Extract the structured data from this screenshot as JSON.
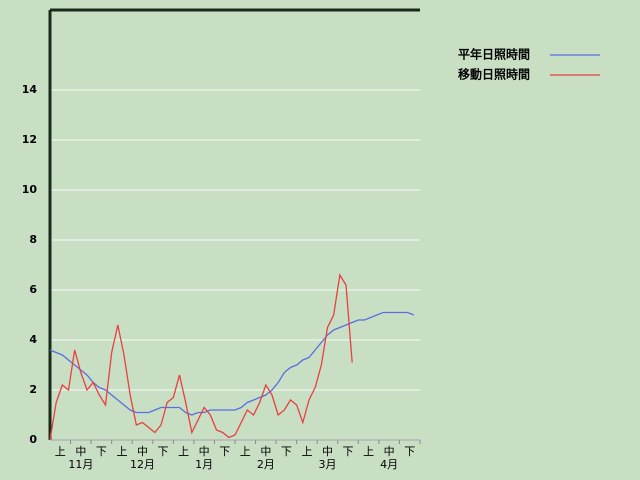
{
  "chart_data": {
    "type": "line",
    "x": [
      0,
      3,
      6,
      9,
      12,
      15,
      18,
      21,
      24,
      27,
      30,
      33,
      36,
      39,
      42,
      45,
      48,
      51,
      54,
      57,
      60,
      63,
      66,
      69,
      72,
      75,
      78,
      81,
      84,
      87,
      90,
      93,
      96,
      99,
      102,
      105,
      108,
      111,
      114,
      117,
      120,
      123,
      126,
      129,
      132,
      135,
      138,
      141,
      144,
      147,
      150,
      153,
      156,
      159,
      162,
      165,
      168,
      171,
      174,
      177
    ],
    "xlim": [
      0,
      180
    ],
    "decade_labels": [
      "上",
      "中",
      "下",
      "上",
      "中",
      "下",
      "上",
      "中",
      "下",
      "上",
      "中",
      "下",
      "上",
      "中",
      "下",
      "上",
      "中",
      "下"
    ],
    "months": [
      "11月",
      "12月",
      "1月",
      "2月",
      "3月",
      "4月"
    ],
    "ylim": [
      0,
      17.2
    ],
    "yticks": [
      0,
      2,
      4,
      6,
      8,
      10,
      12,
      14
    ],
    "grid": true,
    "legend": "top-right",
    "series": [
      {
        "name": "平年日照時間",
        "color": "#5a6ee0",
        "values": [
          3.6,
          3.5,
          3.4,
          3.2,
          3.0,
          2.8,
          2.6,
          2.3,
          2.1,
          2.0,
          1.8,
          1.6,
          1.4,
          1.2,
          1.1,
          1.1,
          1.1,
          1.2,
          1.3,
          1.3,
          1.3,
          1.3,
          1.1,
          1.0,
          1.1,
          1.1,
          1.2,
          1.2,
          1.2,
          1.2,
          1.2,
          1.3,
          1.5,
          1.6,
          1.7,
          1.8,
          2.0,
          2.3,
          2.7,
          2.9,
          3.0,
          3.2,
          3.3,
          3.6,
          3.9,
          4.2,
          4.4,
          4.5,
          4.6,
          4.7,
          4.8,
          4.8,
          4.9,
          5.0,
          5.1,
          5.1,
          5.1,
          5.1,
          5.1,
          5.0
        ]
      },
      {
        "name": "移動日照時間",
        "color": "#e84040",
        "values": [
          0,
          1.5,
          2.2,
          2.0,
          3.6,
          2.7,
          2.0,
          2.3,
          1.8,
          1.4,
          3.5,
          4.6,
          3.4,
          1.8,
          0.6,
          0.7,
          0.5,
          0.3,
          0.6,
          1.5,
          1.7,
          2.6,
          1.5,
          0.3,
          0.8,
          1.3,
          1.0,
          0.4,
          0.3,
          0.1,
          0.2,
          0.7,
          1.2,
          1.0,
          1.5,
          2.2,
          1.8,
          1.0,
          1.2,
          1.6,
          1.4,
          0.7,
          1.6,
          2.1,
          3.0,
          4.5,
          5.0,
          6.6,
          6.2,
          3.1,
          null,
          null,
          null,
          null,
          null,
          null,
          null,
          null,
          null,
          null
        ]
      }
    ]
  }
}
